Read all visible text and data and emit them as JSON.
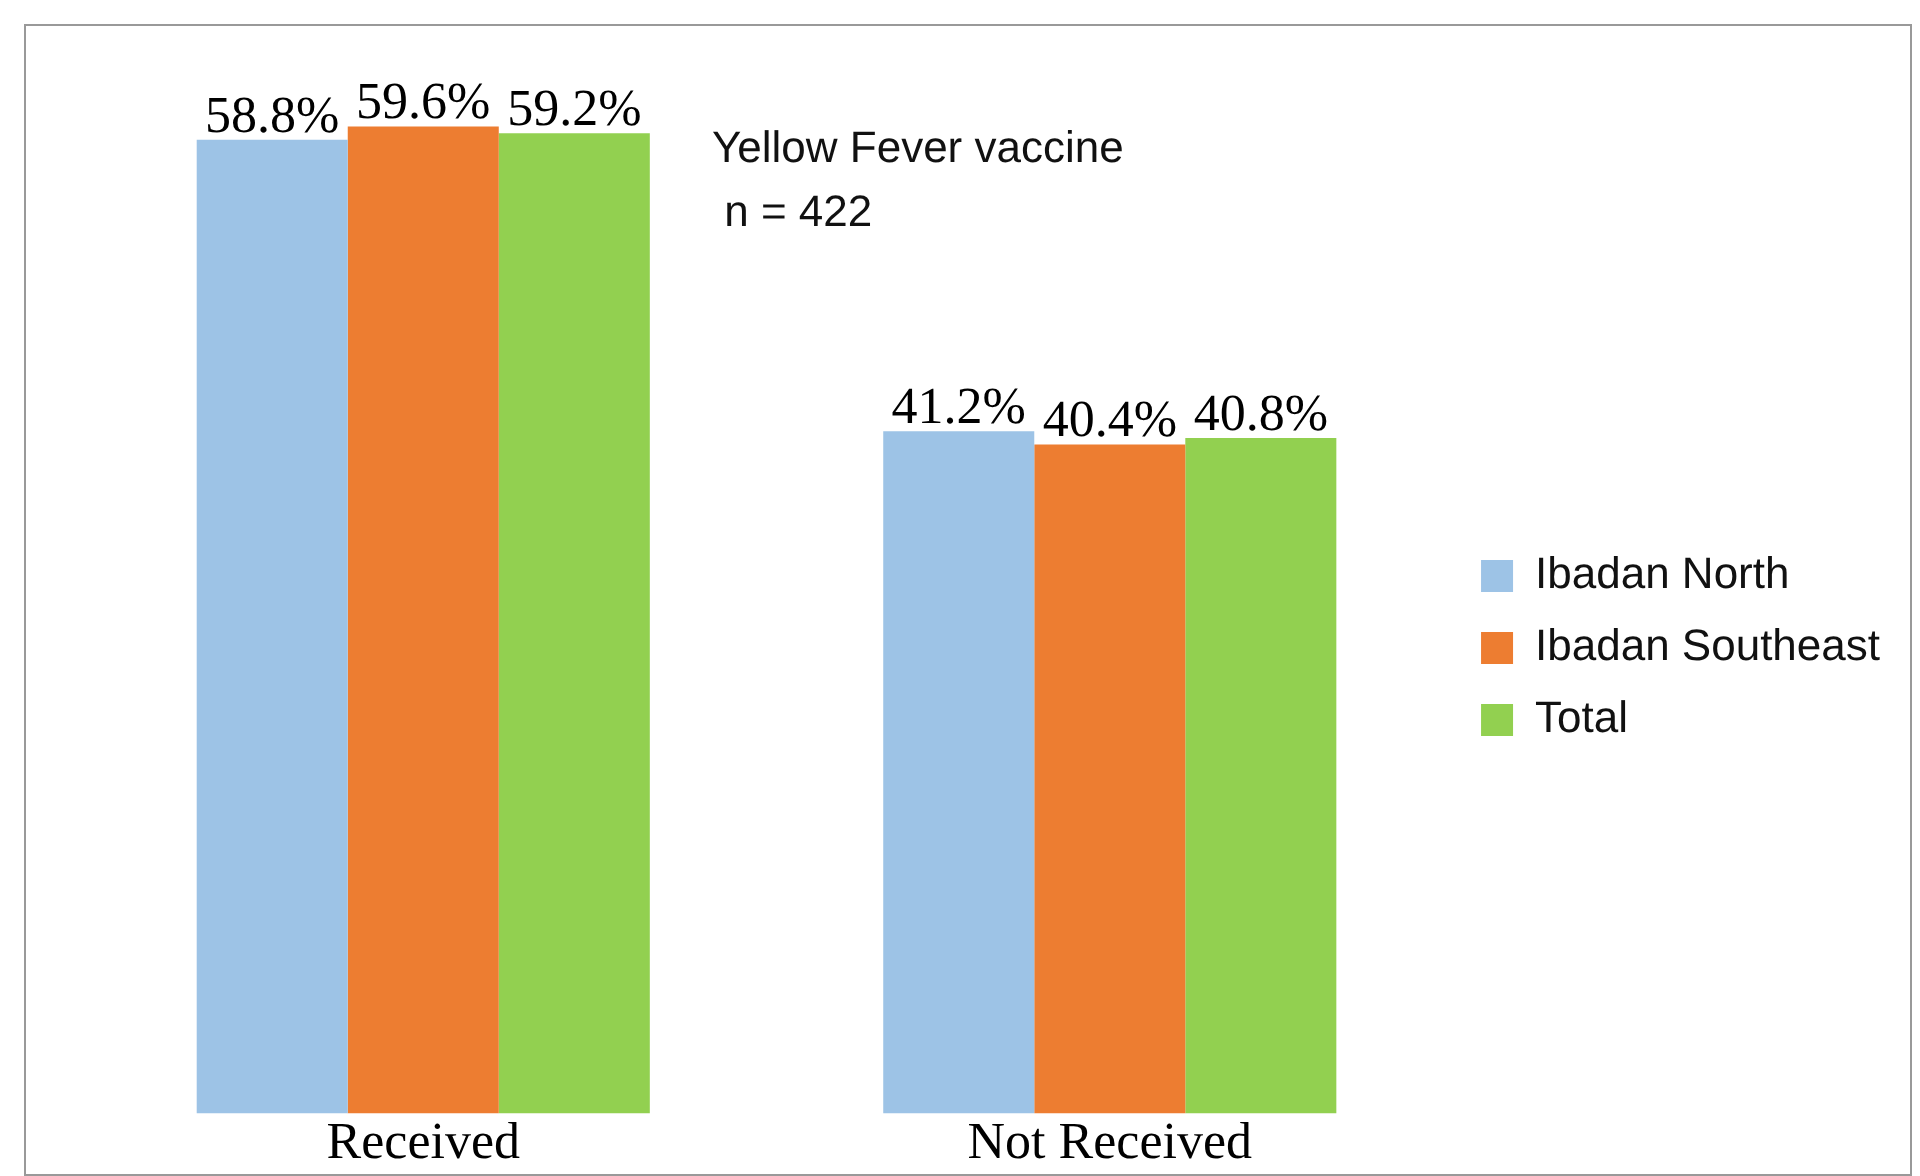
{
  "chart_data": {
    "type": "bar",
    "title": "Yellow Fever vaccine",
    "subtitle": "n = 422",
    "categories": [
      "Received",
      "Not Received"
    ],
    "series": [
      {
        "name": "Ibadan North",
        "color": "#9dc3e6",
        "values": [
          58.8,
          41.2
        ],
        "value_labels": [
          "58.8%",
          "41.2%"
        ]
      },
      {
        "name": "Ibadan Southeast",
        "color": "#ed7d31",
        "values": [
          59.6,
          40.4
        ],
        "value_labels": [
          "59.6%",
          "40.4%"
        ]
      },
      {
        "name": "Total",
        "color": "#92d050",
        "values": [
          59.2,
          40.8
        ],
        "value_labels": [
          "59.2%",
          "40.8%"
        ]
      }
    ],
    "legend": "right",
    "grid": false
  }
}
